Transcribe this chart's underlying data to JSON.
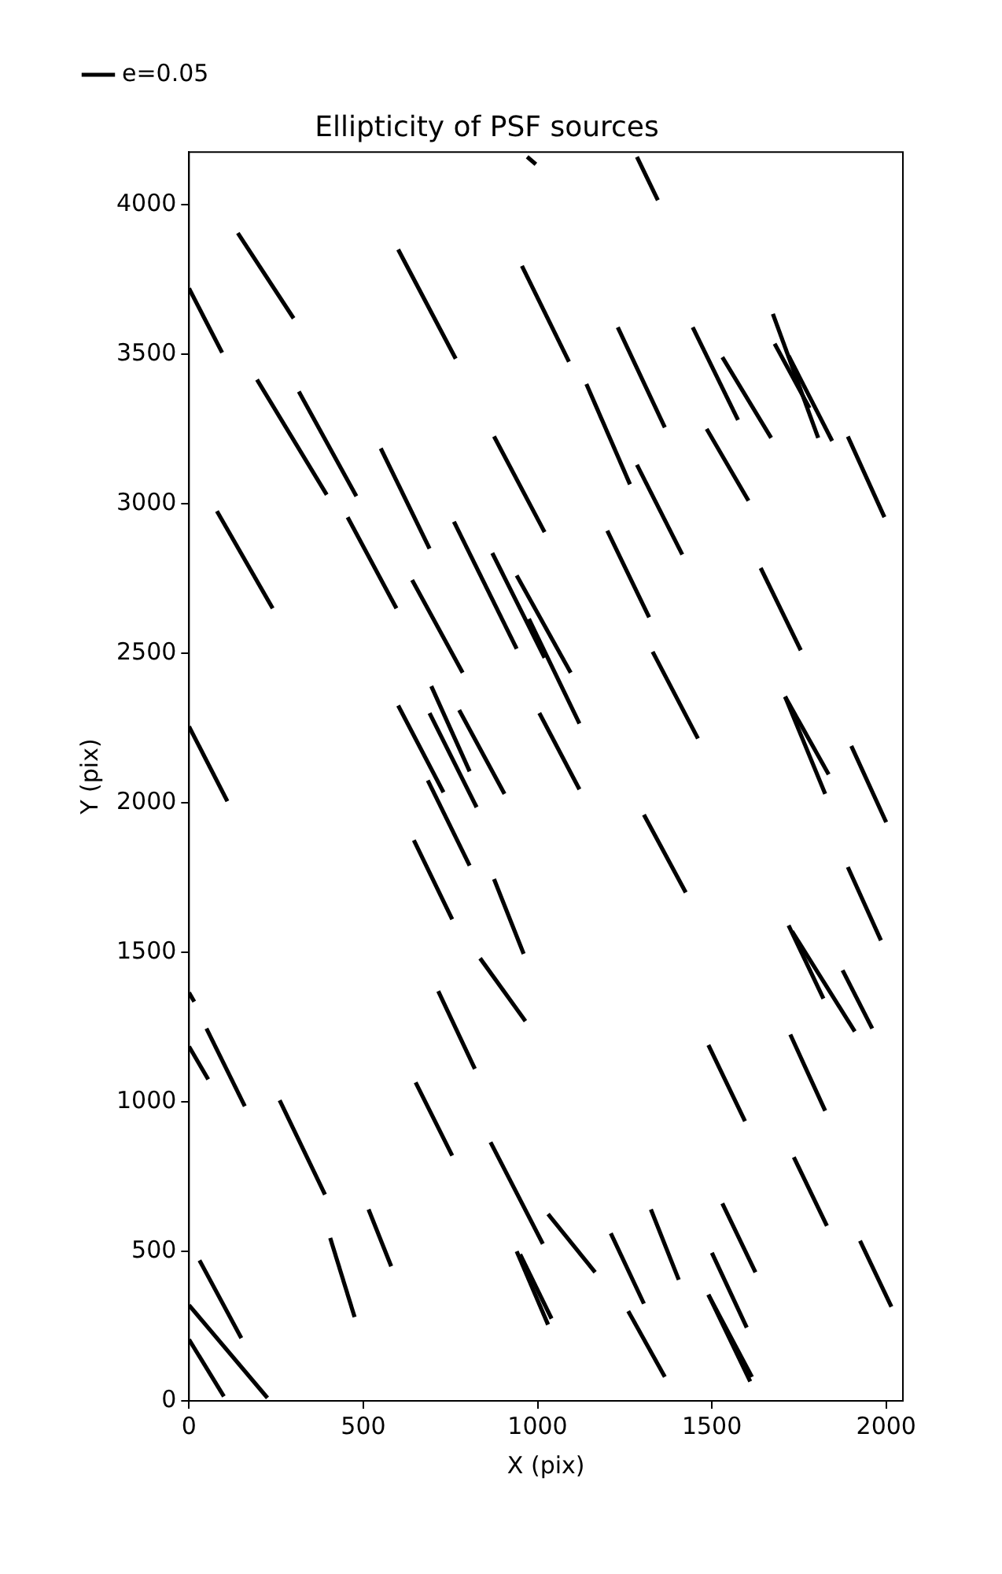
{
  "chart_data": {
    "type": "line",
    "title": "Ellipticity of PSF sources",
    "xlabel": "X (pix)",
    "ylabel": "Y (pix)",
    "xlim": [
      0,
      2048
    ],
    "ylim": [
      0,
      4176
    ],
    "xticks": [
      0,
      500,
      1000,
      1500,
      2000
    ],
    "yticks": [
      0,
      500,
      1000,
      1500,
      2000,
      2500,
      3000,
      3500,
      4000
    ],
    "grid": false,
    "legend": "top left",
    "marker": "none",
    "line_style": "solid",
    "series": [
      {
        "name": "e=0.05",
        "color": "#000000",
        "x": [
          970,
          995
        ],
        "values": [
          4160,
          4135
        ]
      },
      {
        "color": "#000000",
        "x": [
          1285,
          1345
        ],
        "values": [
          4160,
          4015
        ]
      },
      {
        "color": "#000000",
        "x": [
          0,
          95
        ],
        "values": [
          3720,
          3505
        ]
      },
      {
        "color": "#000000",
        "x": [
          140,
          300
        ],
        "values": [
          3905,
          3620
        ]
      },
      {
        "color": "#000000",
        "x": [
          600,
          765
        ],
        "values": [
          3850,
          3485
        ]
      },
      {
        "color": "#000000",
        "x": [
          955,
          1090
        ],
        "values": [
          3795,
          3475
        ]
      },
      {
        "color": "#000000",
        "x": [
          1230,
          1365
        ],
        "values": [
          3590,
          3255
        ]
      },
      {
        "color": "#000000",
        "x": [
          1445,
          1575
        ],
        "values": [
          3590,
          3280
        ]
      },
      {
        "color": "#000000",
        "x": [
          1530,
          1670
        ],
        "values": [
          3490,
          3220
        ]
      },
      {
        "color": "#000000",
        "x": [
          1675,
          1805
        ],
        "values": [
          3635,
          3220
        ]
      },
      {
        "color": "#000000",
        "x": [
          1680,
          1780
        ],
        "values": [
          3535,
          3320
        ]
      },
      {
        "color": "#000000",
        "x": [
          1720,
          1845
        ],
        "values": [
          3495,
          3210
        ]
      },
      {
        "color": "#000000",
        "x": [
          1890,
          1995
        ],
        "values": [
          3225,
          2955
        ]
      },
      {
        "color": "#000000",
        "x": [
          195,
          395
        ],
        "values": [
          3415,
          3030
        ]
      },
      {
        "color": "#000000",
        "x": [
          315,
          480
        ],
        "values": [
          3375,
          3025
        ]
      },
      {
        "color": "#000000",
        "x": [
          550,
          690
        ],
        "values": [
          3185,
          2850
        ]
      },
      {
        "color": "#000000",
        "x": [
          875,
          1020
        ],
        "values": [
          3225,
          2905
        ]
      },
      {
        "color": "#000000",
        "x": [
          1140,
          1265
        ],
        "values": [
          3400,
          3065
        ]
      },
      {
        "color": "#000000",
        "x": [
          1285,
          1415
        ],
        "values": [
          3130,
          2830
        ]
      },
      {
        "color": "#000000",
        "x": [
          1485,
          1605
        ],
        "values": [
          3250,
          3010
        ]
      },
      {
        "color": "#000000",
        "x": [
          80,
          240
        ],
        "values": [
          2975,
          2650
        ]
      },
      {
        "color": "#000000",
        "x": [
          455,
          595
        ],
        "values": [
          2955,
          2650
        ]
      },
      {
        "color": "#000000",
        "x": [
          640,
          785
        ],
        "values": [
          2745,
          2435
        ]
      },
      {
        "color": "#000000",
        "x": [
          760,
          940
        ],
        "values": [
          2940,
          2515
        ]
      },
      {
        "color": "#000000",
        "x": [
          870,
          1020
        ],
        "values": [
          2835,
          2485
        ]
      },
      {
        "color": "#000000",
        "x": [
          940,
          1095
        ],
        "values": [
          2760,
          2435
        ]
      },
      {
        "color": "#000000",
        "x": [
          975,
          1120
        ],
        "values": [
          2615,
          2265
        ]
      },
      {
        "color": "#000000",
        "x": [
          1200,
          1320
        ],
        "values": [
          2910,
          2620
        ]
      },
      {
        "color": "#000000",
        "x": [
          1330,
          1460
        ],
        "values": [
          2505,
          2215
        ]
      },
      {
        "color": "#000000",
        "x": [
          1640,
          1755
        ],
        "values": [
          2785,
          2510
        ]
      },
      {
        "color": "#000000",
        "x": [
          1710,
          1835
        ],
        "values": [
          2355,
          2095
        ]
      },
      {
        "color": "#000000",
        "x": [
          1710,
          1825
        ],
        "values": [
          2355,
          2030
        ]
      },
      {
        "color": "#000000",
        "x": [
          1900,
          2000
        ],
        "values": [
          2190,
          1935
        ]
      },
      {
        "color": "#000000",
        "x": [
          0,
          110
        ],
        "values": [
          2255,
          2005
        ]
      },
      {
        "color": "#000000",
        "x": [
          600,
          730
        ],
        "values": [
          2325,
          2035
        ]
      },
      {
        "color": "#000000",
        "x": [
          695,
          805
        ],
        "values": [
          2390,
          2105
        ]
      },
      {
        "color": "#000000",
        "x": [
          690,
          825
        ],
        "values": [
          2300,
          1985
        ]
      },
      {
        "color": "#000000",
        "x": [
          775,
          905
        ],
        "values": [
          2310,
          2030
        ]
      },
      {
        "color": "#000000",
        "x": [
          1005,
          1120
        ],
        "values": [
          2300,
          2045
        ]
      },
      {
        "color": "#000000",
        "x": [
          1305,
          1425
        ],
        "values": [
          1960,
          1700
        ]
      },
      {
        "color": "#000000",
        "x": [
          1890,
          1985
        ],
        "values": [
          1785,
          1540
        ]
      },
      {
        "color": "#000000",
        "x": [
          1720,
          1820
        ],
        "values": [
          1590,
          1345
        ]
      },
      {
        "color": "#000000",
        "x": [
          1730,
          1910
        ],
        "values": [
          1570,
          1235
        ]
      },
      {
        "color": "#000000",
        "x": [
          1875,
          1960
        ],
        "values": [
          1440,
          1245
        ]
      },
      {
        "color": "#000000",
        "x": [
          685,
          805
        ],
        "values": [
          2075,
          1790
        ]
      },
      {
        "color": "#000000",
        "x": [
          645,
          755
        ],
        "values": [
          1875,
          1610
        ]
      },
      {
        "color": "#000000",
        "x": [
          875,
          960
        ],
        "values": [
          1745,
          1495
        ]
      },
      {
        "color": "#000000",
        "x": [
          835,
          965
        ],
        "values": [
          1480,
          1270
        ]
      },
      {
        "color": "#000000",
        "x": [
          0,
          15
        ],
        "values": [
          1365,
          1335
        ]
      },
      {
        "color": "#000000",
        "x": [
          0,
          55
        ],
        "values": [
          1185,
          1075
        ]
      },
      {
        "color": "#000000",
        "x": [
          50,
          160
        ],
        "values": [
          1245,
          985
        ]
      },
      {
        "color": "#000000",
        "x": [
          260,
          390
        ],
        "values": [
          1005,
          690
        ]
      },
      {
        "color": "#000000",
        "x": [
          515,
          580
        ],
        "values": [
          640,
          450
        ]
      },
      {
        "color": "#000000",
        "x": [
          405,
          475
        ],
        "values": [
          545,
          280
        ]
      },
      {
        "color": "#000000",
        "x": [
          650,
          755
        ],
        "values": [
          1065,
          820
        ]
      },
      {
        "color": "#000000",
        "x": [
          715,
          820
        ],
        "values": [
          1370,
          1110
        ]
      },
      {
        "color": "#000000",
        "x": [
          865,
          1015
        ],
        "values": [
          865,
          525
        ]
      },
      {
        "color": "#000000",
        "x": [
          940,
          1030
        ],
        "values": [
          500,
          255
        ]
      },
      {
        "color": "#000000",
        "x": [
          950,
          1040
        ],
        "values": [
          490,
          275
        ]
      },
      {
        "color": "#000000",
        "x": [
          30,
          150
        ],
        "values": [
          470,
          210
        ]
      },
      {
        "color": "#000000",
        "x": [
          0,
          225
        ],
        "values": [
          320,
          10
        ]
      },
      {
        "color": "#000000",
        "x": [
          0,
          100
        ],
        "values": [
          205,
          15
        ]
      },
      {
        "color": "#000000",
        "x": [
          1030,
          1165
        ],
        "values": [
          625,
          430
        ]
      },
      {
        "color": "#000000",
        "x": [
          1210,
          1305
        ],
        "values": [
          560,
          325
        ]
      },
      {
        "color": "#000000",
        "x": [
          1325,
          1405
        ],
        "values": [
          640,
          405
        ]
      },
      {
        "color": "#000000",
        "x": [
          1260,
          1365
        ],
        "values": [
          300,
          80
        ]
      },
      {
        "color": "#000000",
        "x": [
          1530,
          1625
        ],
        "values": [
          660,
          430
        ]
      },
      {
        "color": "#000000",
        "x": [
          1500,
          1600
        ],
        "values": [
          495,
          245
        ]
      },
      {
        "color": "#000000",
        "x": [
          1490,
          1610
        ],
        "values": [
          355,
          65
        ]
      },
      {
        "color": "#000000",
        "x": [
          1490,
          1615
        ],
        "values": [
          355,
          80
        ]
      },
      {
        "color": "#000000",
        "x": [
          1735,
          1830
        ],
        "values": [
          815,
          585
        ]
      },
      {
        "color": "#000000",
        "x": [
          1925,
          2015
        ],
        "values": [
          535,
          315
        ]
      },
      {
        "color": "#000000",
        "x": [
          1490,
          1595
        ],
        "values": [
          1190,
          935
        ]
      },
      {
        "color": "#000000",
        "x": [
          1725,
          1825
        ],
        "values": [
          1225,
          970
        ]
      }
    ]
  }
}
